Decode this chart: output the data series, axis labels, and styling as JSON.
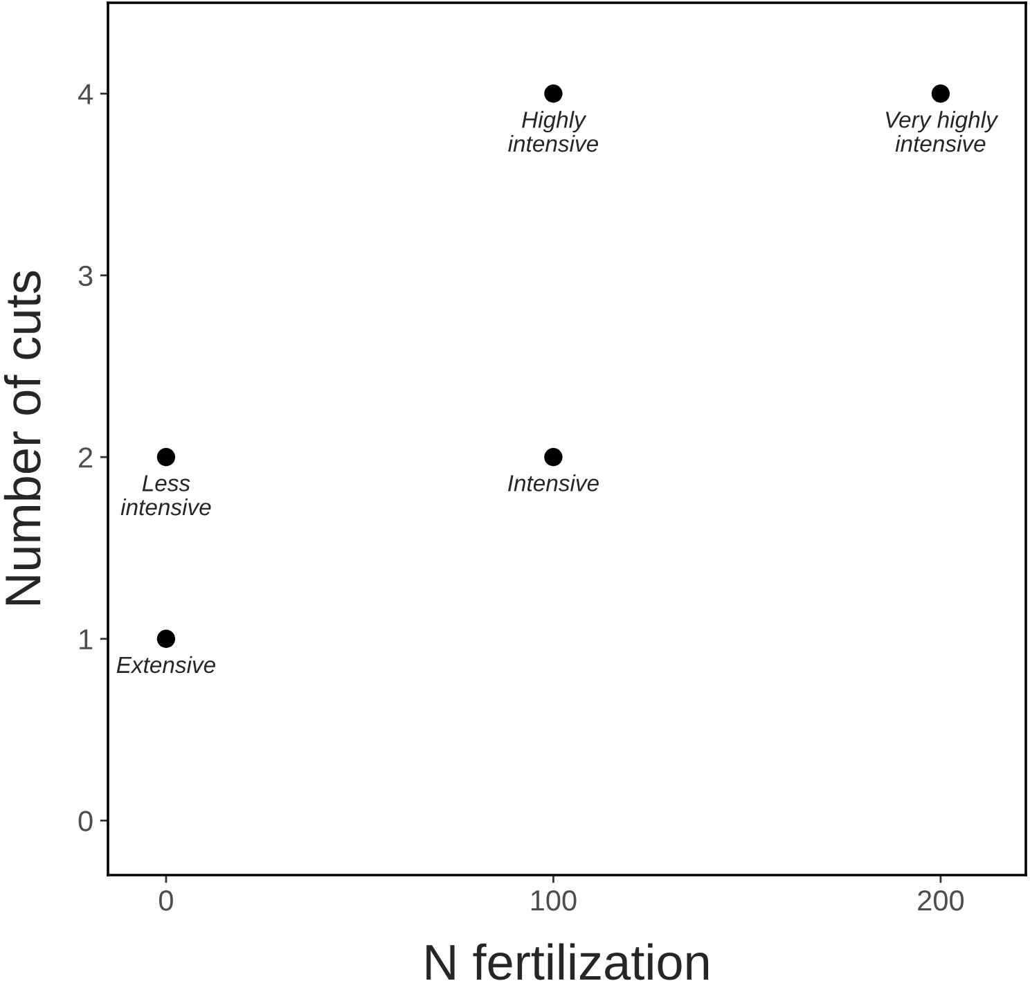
{
  "chart_data": {
    "type": "scatter",
    "xlabel": "N fertilization",
    "ylabel": "Number of cuts",
    "x": [
      0,
      0,
      100,
      100,
      200
    ],
    "series": [
      {
        "color": "#000000",
        "values": [
          1,
          2,
          2,
          4,
          4
        ]
      }
    ],
    "annotations": [
      {
        "text": "Extensive",
        "x": 0,
        "y": 1
      },
      {
        "text": "Less\nintensive",
        "x": 0,
        "y": 2
      },
      {
        "text": "Intensive",
        "x": 100,
        "y": 2
      },
      {
        "text": "Highly\nintensive",
        "x": 100,
        "y": 4
      },
      {
        "text": "Very highly\nintensive",
        "x": 200,
        "y": 4
      }
    ],
    "xlim": [
      -15,
      222
    ],
    "ylim": [
      -0.3,
      4.5
    ],
    "xticks": [
      0,
      100,
      200
    ],
    "yticks": [
      0,
      1,
      2,
      3,
      4
    ],
    "marker": "circle",
    "grid": false,
    "legend": false
  }
}
